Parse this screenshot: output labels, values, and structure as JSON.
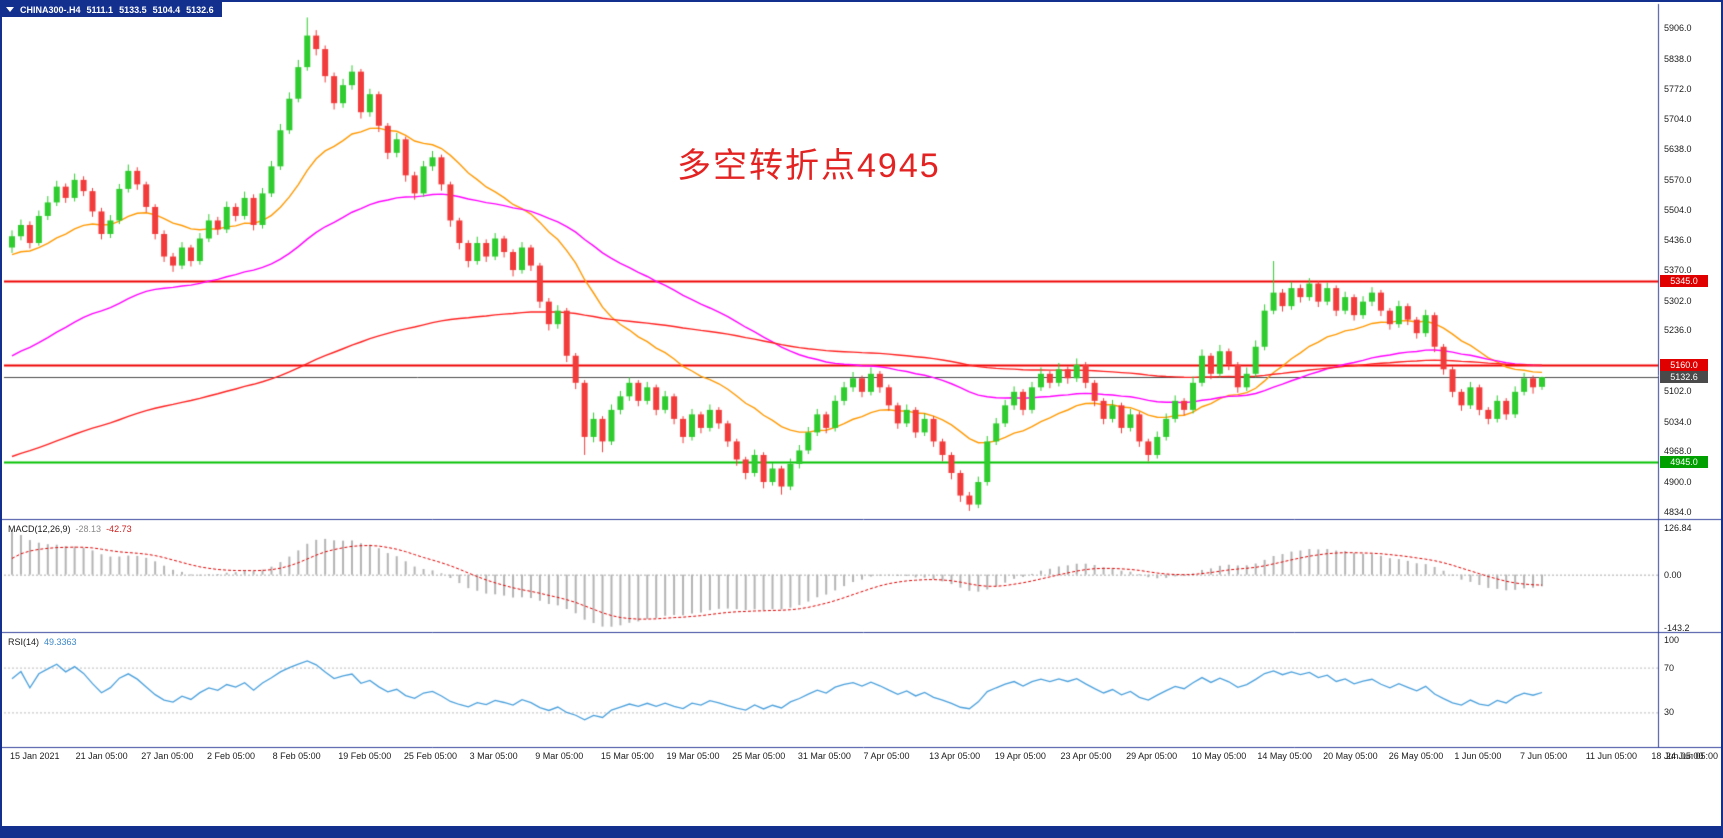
{
  "window": {
    "frame_color": "#14308f",
    "background": "#ffffff",
    "divider_color": "#30409a"
  },
  "header": {
    "symbol": "CHINA300-.H4",
    "open": "5111.1",
    "high": "5133.5",
    "low": "5104.4",
    "close": "5132.6"
  },
  "indicators": {
    "macd": {
      "label": "MACD(12,26,9)",
      "value1": "-28.13",
      "value2": "-42.73",
      "value1_color": "#8a8a8a",
      "value2_color": "#cc2222",
      "scale_labels": [
        "126.84",
        "0.00",
        "-143.2"
      ],
      "scale_values": [
        126.84,
        0,
        -143.2
      ],
      "histogram_color": "#b4b4b4",
      "signal_color": "#e00000",
      "range": [
        -155,
        145
      ]
    },
    "rsi": {
      "label": "RSI(14)",
      "value": "49.3363",
      "value_color": "#3b87c8",
      "scale_labels": [
        "100",
        "70",
        "30"
      ],
      "scale_values": [
        100,
        70,
        30
      ],
      "line_color": "#4aa0dc",
      "level_lines": [
        70,
        30
      ],
      "range": [
        0,
        100
      ]
    }
  },
  "chart_data": {
    "type": "candlestick",
    "symbol": "CHINA300-.H4",
    "timeframe": "H4",
    "up_color": "#2ecc2e",
    "down_color": "#f23b3b",
    "annotation": {
      "text": "多空转折点4945",
      "color": "#e32222"
    },
    "price_axis": {
      "min": 4818,
      "max": 5960,
      "tick_labels": [
        "5906.0",
        "5838.0",
        "5772.0",
        "5704.0",
        "5638.0",
        "5570.0",
        "5504.0",
        "5436.0",
        "5370.0",
        "5302.0",
        "5236.0",
        "5102.0",
        "5034.0",
        "4968.0",
        "4900.0",
        "4834.0"
      ]
    },
    "time_labels": [
      "15 Jan 2021",
      "21 Jan 05:00",
      "27 Jan 05:00",
      "2 Feb 05:00",
      "8 Feb 05:00",
      "19 Feb 05:00",
      "25 Feb 05:00",
      "3 Mar 05:00",
      "9 Mar 05:00",
      "15 Mar 05:00",
      "19 Mar 05:00",
      "25 Mar 05:00",
      "31 Mar 05:00",
      "7 Apr 05:00",
      "13 Apr 05:00",
      "19 Apr 05:00",
      "23 Apr 05:00",
      "29 Apr 05:00",
      "10 May 05:00",
      "14 May 05:00",
      "20 May 05:00",
      "26 May 05:00",
      "1 Jun 05:00",
      "7 Jun 05:00",
      "11 Jun 05:00",
      "18 Jun 05:00",
      "24 Jun 05:00"
    ],
    "horizontal_lines": [
      {
        "label": "5345.0",
        "price": 5345.0,
        "line_color": "#ef0000",
        "tag_bg": "#e00000",
        "width": 2
      },
      {
        "label": "5160.0",
        "price": 5160.0,
        "line_color": "#ef0000",
        "tag_bg": "#e00000",
        "width": 2
      },
      {
        "label": "5132.6",
        "price": 5132.6,
        "line_color": "#4a4a4a",
        "tag_bg": "#4a4a4a",
        "width": 1
      },
      {
        "label": "4945.0",
        "price": 4945.0,
        "line_color": "#00c000",
        "tag_bg": "#00a000",
        "width": 2
      }
    ],
    "overlays": [
      {
        "name": "ma-fast",
        "type": "ema",
        "period": 20,
        "seed": 5400,
        "color": "#ff9900"
      },
      {
        "name": "ma-mid",
        "type": "ema",
        "period": 55,
        "seed": 5170,
        "color": "#ff00ff"
      },
      {
        "name": "ma-slow",
        "type": "ema",
        "period": 150,
        "seed": 4950,
        "color": "#ff2020"
      }
    ],
    "candles": [
      [
        5420,
        5458,
        5408,
        5445
      ],
      [
        5445,
        5482,
        5436,
        5470
      ],
      [
        5470,
        5478,
        5418,
        5430
      ],
      [
        5430,
        5502,
        5424,
        5490
      ],
      [
        5490,
        5534,
        5481,
        5520
      ],
      [
        5520,
        5568,
        5512,
        5555
      ],
      [
        5555,
        5562,
        5519,
        5530
      ],
      [
        5530,
        5584,
        5522,
        5570
      ],
      [
        5570,
        5578,
        5534,
        5545
      ],
      [
        5545,
        5552,
        5488,
        5500
      ],
      [
        5500,
        5508,
        5438,
        5450
      ],
      [
        5450,
        5492,
        5441,
        5480
      ],
      [
        5480,
        5561,
        5472,
        5550
      ],
      [
        5550,
        5604,
        5542,
        5590
      ],
      [
        5590,
        5598,
        5548,
        5560
      ],
      [
        5560,
        5566,
        5498,
        5510
      ],
      [
        5510,
        5516,
        5438,
        5450
      ],
      [
        5450,
        5458,
        5388,
        5400
      ],
      [
        5400,
        5408,
        5366,
        5380
      ],
      [
        5380,
        5432,
        5372,
        5420
      ],
      [
        5420,
        5426,
        5378,
        5390
      ],
      [
        5390,
        5452,
        5382,
        5440
      ],
      [
        5440,
        5494,
        5432,
        5480
      ],
      [
        5480,
        5488,
        5448,
        5460
      ],
      [
        5460,
        5522,
        5452,
        5510
      ],
      [
        5510,
        5518,
        5478,
        5490
      ],
      [
        5490,
        5544,
        5482,
        5530
      ],
      [
        5530,
        5538,
        5458,
        5470
      ],
      [
        5470,
        5552,
        5462,
        5540
      ],
      [
        5540,
        5612,
        5532,
        5600
      ],
      [
        5600,
        5694,
        5592,
        5680
      ],
      [
        5680,
        5764,
        5672,
        5750
      ],
      [
        5750,
        5836,
        5742,
        5820
      ],
      [
        5820,
        5930,
        5812,
        5890
      ],
      [
        5890,
        5902,
        5846,
        5860
      ],
      [
        5860,
        5868,
        5786,
        5800
      ],
      [
        5800,
        5808,
        5726,
        5740
      ],
      [
        5740,
        5794,
        5730,
        5780
      ],
      [
        5780,
        5824,
        5770,
        5810
      ],
      [
        5810,
        5816,
        5706,
        5720
      ],
      [
        5720,
        5772,
        5710,
        5760
      ],
      [
        5760,
        5766,
        5676,
        5690
      ],
      [
        5690,
        5696,
        5616,
        5630
      ],
      [
        5630,
        5674,
        5620,
        5660
      ],
      [
        5660,
        5666,
        5566,
        5580
      ],
      [
        5580,
        5588,
        5526,
        5540
      ],
      [
        5540,
        5612,
        5532,
        5600
      ],
      [
        5600,
        5634,
        5590,
        5620
      ],
      [
        5620,
        5626,
        5546,
        5560
      ],
      [
        5560,
        5566,
        5466,
        5480
      ],
      [
        5480,
        5486,
        5416,
        5430
      ],
      [
        5430,
        5436,
        5376,
        5390
      ],
      [
        5390,
        5444,
        5382,
        5430
      ],
      [
        5430,
        5438,
        5388,
        5400
      ],
      [
        5400,
        5452,
        5392,
        5440
      ],
      [
        5440,
        5446,
        5398,
        5410
      ],
      [
        5410,
        5416,
        5356,
        5370
      ],
      [
        5370,
        5432,
        5362,
        5420
      ],
      [
        5420,
        5426,
        5368,
        5380
      ],
      [
        5380,
        5386,
        5286,
        5300
      ],
      [
        5300,
        5308,
        5236,
        5250
      ],
      [
        5250,
        5292,
        5240,
        5280
      ],
      [
        5280,
        5286,
        5166,
        5180
      ],
      [
        5180,
        5186,
        5106,
        5120
      ],
      [
        5120,
        5126,
        4960,
        5000
      ],
      [
        5000,
        5054,
        4988,
        5040
      ],
      [
        5040,
        5046,
        4966,
        4990
      ],
      [
        4990,
        5072,
        4982,
        5060
      ],
      [
        5060,
        5102,
        5050,
        5090
      ],
      [
        5090,
        5132,
        5080,
        5120
      ],
      [
        5120,
        5126,
        5068,
        5080
      ],
      [
        5080,
        5122,
        5072,
        5110
      ],
      [
        5110,
        5116,
        5048,
        5060
      ],
      [
        5060,
        5102,
        5052,
        5090
      ],
      [
        5090,
        5096,
        5028,
        5040
      ],
      [
        5040,
        5046,
        4986,
        5000
      ],
      [
        5000,
        5062,
        4992,
        5050
      ],
      [
        5050,
        5056,
        5008,
        5020
      ],
      [
        5020,
        5072,
        5012,
        5060
      ],
      [
        5060,
        5066,
        5018,
        5030
      ],
      [
        5030,
        5036,
        4978,
        4990
      ],
      [
        4990,
        4996,
        4936,
        4950
      ],
      [
        4950,
        4956,
        4906,
        4920
      ],
      [
        4920,
        4972,
        4912,
        4960
      ],
      [
        4960,
        4966,
        4886,
        4900
      ],
      [
        4900,
        4942,
        4892,
        4930
      ],
      [
        4930,
        4936,
        4872,
        4890
      ],
      [
        4890,
        4952,
        4882,
        4940
      ],
      [
        4940,
        4982,
        4930,
        4970
      ],
      [
        4970,
        5022,
        4962,
        5010
      ],
      [
        5010,
        5062,
        5002,
        5050
      ],
      [
        5050,
        5056,
        5008,
        5020
      ],
      [
        5020,
        5092,
        5012,
        5080
      ],
      [
        5080,
        5122,
        5070,
        5110
      ],
      [
        5110,
        5144,
        5100,
        5130
      ],
      [
        5130,
        5136,
        5088,
        5100
      ],
      [
        5100,
        5154,
        5092,
        5140
      ],
      [
        5140,
        5146,
        5098,
        5110
      ],
      [
        5110,
        5116,
        5058,
        5070
      ],
      [
        5070,
        5076,
        5018,
        5030
      ],
      [
        5030,
        5072,
        5022,
        5060
      ],
      [
        5060,
        5066,
        4998,
        5010
      ],
      [
        5010,
        5052,
        5002,
        5040
      ],
      [
        5040,
        5046,
        4978,
        4990
      ],
      [
        4990,
        4996,
        4946,
        4960
      ],
      [
        4960,
        4966,
        4906,
        4920
      ],
      [
        4920,
        4926,
        4856,
        4870
      ],
      [
        4870,
        4878,
        4836,
        4850
      ],
      [
        4850,
        4912,
        4842,
        4900
      ],
      [
        4900,
        5002,
        4892,
        4990
      ],
      [
        4990,
        5042,
        4982,
        5030
      ],
      [
        5030,
        5082,
        5022,
        5070
      ],
      [
        5070,
        5112,
        5060,
        5100
      ],
      [
        5100,
        5106,
        5048,
        5060
      ],
      [
        5060,
        5122,
        5052,
        5110
      ],
      [
        5110,
        5154,
        5102,
        5140
      ],
      [
        5140,
        5146,
        5108,
        5120
      ],
      [
        5120,
        5164,
        5112,
        5150
      ],
      [
        5150,
        5156,
        5118,
        5130
      ],
      [
        5130,
        5174,
        5122,
        5160
      ],
      [
        5160,
        5166,
        5108,
        5120
      ],
      [
        5120,
        5126,
        5068,
        5080
      ],
      [
        5080,
        5086,
        5028,
        5040
      ],
      [
        5040,
        5082,
        5032,
        5070
      ],
      [
        5070,
        5076,
        5008,
        5020
      ],
      [
        5020,
        5062,
        5012,
        5050
      ],
      [
        5050,
        5056,
        4978,
        4990
      ],
      [
        4990,
        4996,
        4946,
        4960
      ],
      [
        4960,
        5012,
        4952,
        5000
      ],
      [
        5000,
        5052,
        4992,
        5040
      ],
      [
        5040,
        5092,
        5032,
        5080
      ],
      [
        5080,
        5086,
        5048,
        5060
      ],
      [
        5060,
        5134,
        5052,
        5120
      ],
      [
        5120,
        5194,
        5112,
        5180
      ],
      [
        5180,
        5186,
        5128,
        5140
      ],
      [
        5140,
        5204,
        5132,
        5190
      ],
      [
        5190,
        5196,
        5148,
        5160
      ],
      [
        5160,
        5166,
        5098,
        5110
      ],
      [
        5110,
        5154,
        5102,
        5140
      ],
      [
        5140,
        5214,
        5132,
        5200
      ],
      [
        5200,
        5294,
        5192,
        5280
      ],
      [
        5280,
        5390,
        5272,
        5320
      ],
      [
        5320,
        5328,
        5278,
        5290
      ],
      [
        5290,
        5344,
        5282,
        5330
      ],
      [
        5330,
        5338,
        5298,
        5310
      ],
      [
        5310,
        5352,
        5302,
        5340
      ],
      [
        5340,
        5346,
        5288,
        5300
      ],
      [
        5300,
        5342,
        5292,
        5330
      ],
      [
        5330,
        5336,
        5268,
        5280
      ],
      [
        5280,
        5322,
        5272,
        5310
      ],
      [
        5310,
        5316,
        5258,
        5270
      ],
      [
        5270,
        5312,
        5262,
        5300
      ],
      [
        5300,
        5332,
        5290,
        5320
      ],
      [
        5320,
        5326,
        5268,
        5280
      ],
      [
        5280,
        5286,
        5238,
        5250
      ],
      [
        5250,
        5302,
        5242,
        5290
      ],
      [
        5290,
        5296,
        5248,
        5260
      ],
      [
        5260,
        5266,
        5218,
        5230
      ],
      [
        5230,
        5282,
        5222,
        5270
      ],
      [
        5270,
        5276,
        5188,
        5200
      ],
      [
        5200,
        5206,
        5138,
        5150
      ],
      [
        5150,
        5156,
        5088,
        5100
      ],
      [
        5100,
        5106,
        5058,
        5070
      ],
      [
        5070,
        5122,
        5062,
        5110
      ],
      [
        5110,
        5116,
        5048,
        5060
      ],
      [
        5060,
        5066,
        5028,
        5040
      ],
      [
        5040,
        5092,
        5032,
        5080
      ],
      [
        5080,
        5086,
        5038,
        5050
      ],
      [
        5050,
        5112,
        5042,
        5100
      ],
      [
        5100,
        5142,
        5092,
        5130
      ],
      [
        5130,
        5136,
        5096,
        5110
      ],
      [
        5111.1,
        5133.5,
        5104.4,
        5132.6
      ]
    ]
  }
}
